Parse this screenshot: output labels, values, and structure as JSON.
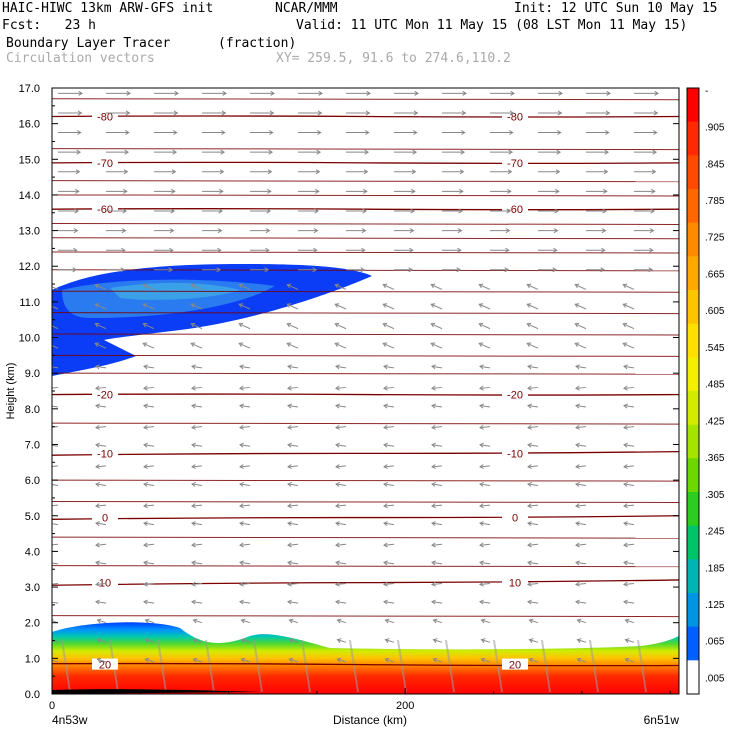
{
  "header": {
    "model": "HAIC-HIWC 13km ARW-GFS init",
    "org": "NCAR/MMM",
    "init": "Init: 12 UTC Sun 10 May 15",
    "fcst": "Fcst:   23 h",
    "valid": "Valid: 11 UTC Mon 11 May 15 (08 LST Mon 11 May 15)",
    "field": "Boundary Layer Tracer",
    "units": "(fraction)",
    "vectors": "Circulation vectors",
    "xy": "XY= 259.5, 91.6 to 274.6,110.2"
  },
  "chart_data": {
    "type": "heatmap",
    "title": "Boundary Layer Tracer",
    "ylabel": "Height (km)",
    "xlabel": "Distance (km)",
    "ylim": [
      0,
      17
    ],
    "xlim": [
      0,
      355
    ],
    "y_ticks": [
      "0.0",
      "1.0",
      "2.0",
      "3.0",
      "4.0",
      "5.0",
      "6.0",
      "7.0",
      "8.0",
      "9.0",
      "10.0",
      "11.0",
      "12.0",
      "13.0",
      "14.0",
      "15.0",
      "16.0",
      "17.0"
    ],
    "x_ticks": [
      {
        "value": 0,
        "label": "0"
      },
      {
        "value": 200,
        "label": "200"
      }
    ],
    "x_end_labels": {
      "left": "4n53w",
      "right": "6n51w"
    },
    "colorbar_labels": [
      "-",
      ".905",
      ".845",
      ".785",
      ".725",
      ".665",
      ".605",
      ".545",
      ".485",
      ".425",
      ".365",
      ".305",
      ".245",
      ".185",
      ".125",
      ".065",
      ".005"
    ],
    "colorbar_colors": [
      "#ff0000",
      "#ff2a00",
      "#ff4a00",
      "#ff6800",
      "#ff8a00",
      "#ffa800",
      "#ffc400",
      "#ffe000",
      "#f2f000",
      "#d2ec00",
      "#a6e400",
      "#6cd800",
      "#2ccc20",
      "#00c46a",
      "#00b4b4",
      "#0094e4",
      "#0060ff",
      "#ffffff"
    ],
    "temperature_contours": [
      {
        "label": "-80",
        "h": [
          16.2,
          16.2
        ]
      },
      {
        "label": "-70",
        "h": [
          14.9,
          14.9
        ]
      },
      {
        "label": "-60",
        "h": [
          13.6,
          13.6
        ]
      },
      {
        "label": "-20",
        "h": [
          8.4,
          8.4
        ]
      },
      {
        "label": "-10",
        "h": [
          6.7,
          6.8
        ]
      },
      {
        "label": "0",
        "h": [
          4.9,
          5.0
        ]
      },
      {
        "label": "10",
        "h": [
          3.05,
          3.2
        ]
      },
      {
        "label": "20",
        "h": [
          0.85,
          0.8
        ]
      }
    ],
    "colors": {
      "contour": "#7a0000",
      "vector": "#888888"
    }
  }
}
